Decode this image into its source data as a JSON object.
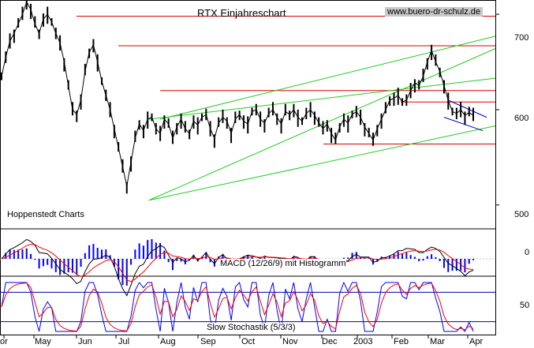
{
  "chart_data": {
    "type": "line",
    "title": "RTX Einjahreschart",
    "source": "www.buero-dr-schulz.de",
    "credit": "Hoppenstedt Charts",
    "x_ticks": [
      "or",
      "May",
      "Jun",
      "Jul",
      "Aug",
      "Sep",
      "Oct",
      "Nov",
      "Dec",
      "2003",
      "Feb",
      "Mar",
      "Apr"
    ],
    "price_panel": {
      "y_ticks": [
        700,
        600,
        500
      ],
      "ylim": [
        475,
        715
      ],
      "support_resistance_levels": [
        698,
        667,
        620,
        608,
        564
      ],
      "series_close": [
        635,
        655,
        672,
        680,
        690,
        700,
        713,
        705,
        690,
        680,
        695,
        700,
        692,
        680,
        670,
        650,
        625,
        600,
        595,
        610,
        640,
        660,
        668,
        650,
        630,
        615,
        600,
        580,
        560,
        540,
        520,
        545,
        570,
        585,
        578,
        590,
        592,
        580,
        575,
        590,
        585,
        570,
        582,
        590,
        580,
        575,
        588,
        584,
        592,
        595,
        580,
        570,
        586,
        592,
        588,
        575,
        590,
        595,
        588,
        585,
        598,
        600,
        590,
        586,
        596,
        600,
        592,
        585,
        598,
        595,
        600,
        592,
        588,
        596,
        600,
        594,
        586,
        580,
        585,
        575,
        568,
        582,
        590,
        586,
        595,
        598,
        592,
        582,
        575,
        568,
        580,
        590,
        600,
        610,
        612,
        615,
        608,
        610,
        620,
        628,
        625,
        635,
        650,
        662,
        650,
        640,
        625,
        610,
        598,
        596,
        600,
        594,
        597,
        594
      ],
      "trendlines": [
        {
          "from": [
            "Aug",
            505
          ],
          "to": [
            "Apr",
            583
          ]
        },
        {
          "from": [
            "Aug",
            505
          ],
          "to": [
            "Apr",
            664
          ]
        },
        {
          "from": [
            "Jul",
            590
          ],
          "to": [
            "Apr",
            677
          ]
        },
        {
          "from": [
            "Aug",
            590
          ],
          "to": [
            "Apr",
            633
          ]
        }
      ],
      "flag_channel": {
        "upper": [
          610,
          592
        ],
        "lower": [
          592,
          578
        ]
      }
    },
    "macd_panel": {
      "label": "MACD (12/26/9) mit Histogramm",
      "y_ticks": [
        0
      ],
      "series": [
        {
          "name": "MACD",
          "color": "#000000"
        },
        {
          "name": "Signal",
          "color": "#ff0000"
        },
        {
          "name": "Histogramm",
          "color": "#0000ff"
        }
      ]
    },
    "stochastic_panel": {
      "label": "Slow Stochastik (5/3/3)",
      "y_ticks": [
        50
      ],
      "bands": [
        80,
        20
      ],
      "series": [
        {
          "name": "%K",
          "color": "#0000ff"
        },
        {
          "name": "%D",
          "color": "#ff0000"
        }
      ]
    },
    "colors": {
      "price": "#000000",
      "resistance": "#dd0000",
      "trend": "#22cc22",
      "channel": "#0000cc"
    }
  }
}
